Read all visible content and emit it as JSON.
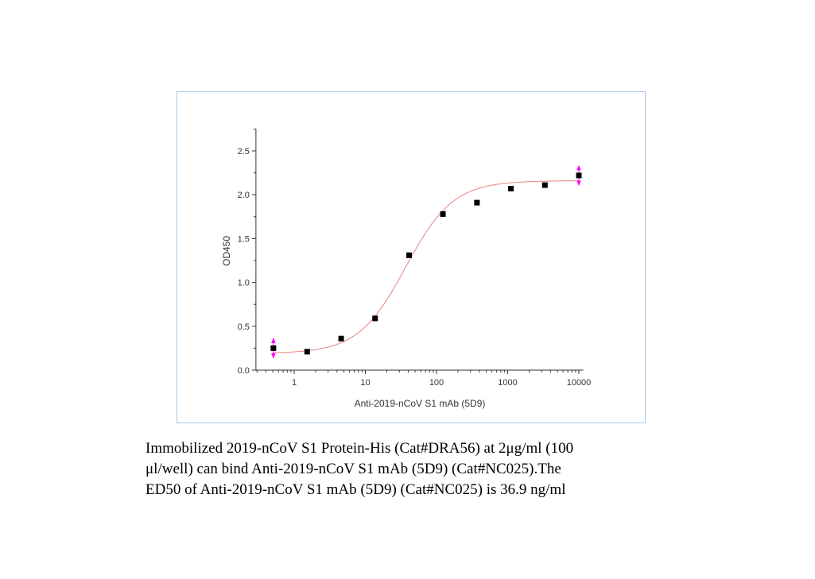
{
  "chart_data": {
    "type": "scatter",
    "xlabel": "Anti-2019-nCoV S1 mAb (5D9)",
    "ylabel": "OD450",
    "xscale": "log",
    "xlim": [
      0.29,
      11500
    ],
    "ylim": [
      0,
      2.75
    ],
    "xticks": [
      1,
      10,
      100,
      1000,
      10000
    ],
    "xtick_labels": [
      "1",
      "10",
      "100",
      "1000",
      "10000"
    ],
    "yticks": [
      0,
      0.5,
      1.0,
      1.5,
      2.0,
      2.5
    ],
    "ytick_labels": [
      "0.0",
      "0.5",
      "1.0",
      "1.5",
      "2.0",
      "2.5"
    ],
    "grid": false,
    "series": [
      {
        "x": [
          0.51,
          1.52,
          4.57,
          13.7,
          41.2,
          123,
          370,
          1111,
          3333,
          10000
        ],
        "y": [
          0.25,
          0.21,
          0.36,
          0.59,
          1.31,
          1.78,
          1.91,
          2.07,
          2.11,
          2.22
        ],
        "marker": "square",
        "color": "#000000"
      }
    ],
    "fit": {
      "type": "4PL",
      "bottom": 0.19,
      "top": 2.16,
      "ec50": 36.9,
      "hill": 1.3,
      "color": "#f08080"
    },
    "error_bar_color": "#ff00ff"
  },
  "caption": {
    "line1": "Immobilized 2019-nCoV S1 Protein-His (Cat#DRA56) at 2μg/ml (100",
    "line2": "μl/well) can bind Anti-2019-nCoV S1 mAb (5D9) (Cat#NC025).The",
    "line3": "ED50 of Anti-2019-nCoV S1 mAb (5D9) (Cat#NC025) is 36.9 ng/ml"
  }
}
